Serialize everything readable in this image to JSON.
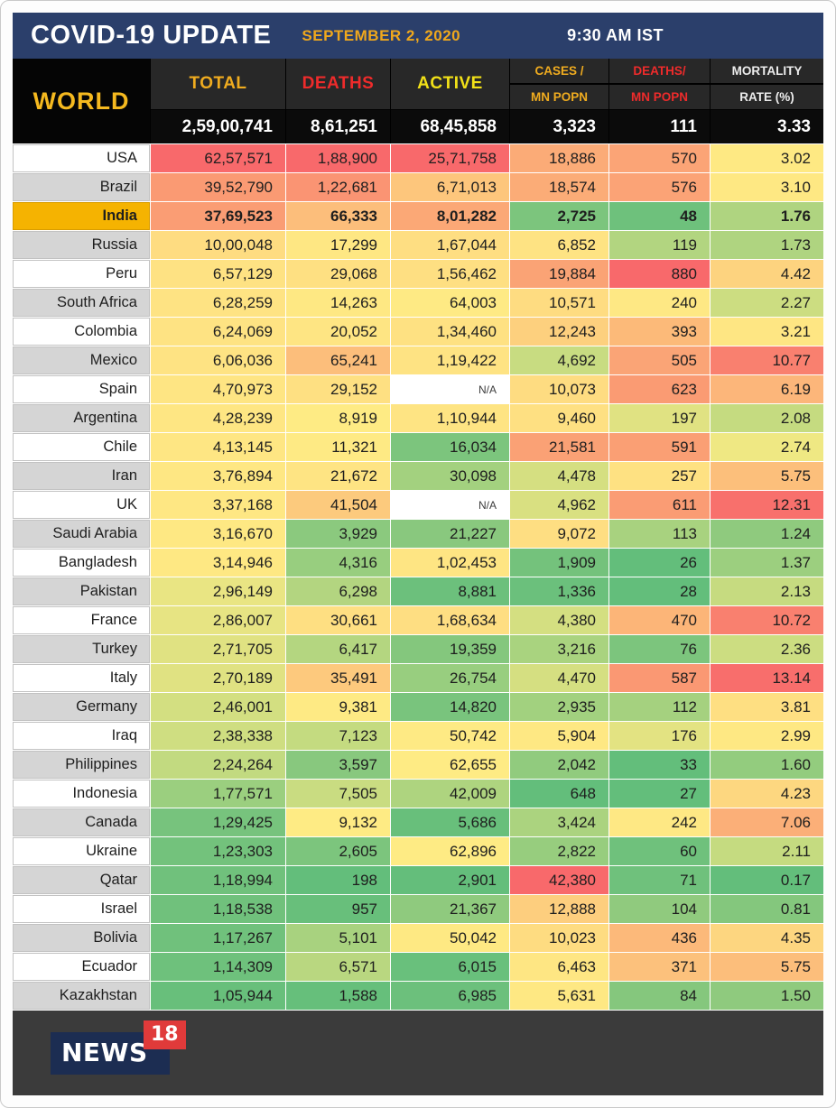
{
  "header": {
    "title": "COVID-19 UPDATE",
    "date": "SEPTEMBER 2, 2020",
    "time": "9:30 AM IST"
  },
  "footer": {
    "logo_text": "NEWS",
    "logo_badge": "18"
  },
  "colors": {
    "topbar_bg": "#2b3f6b",
    "gold_accent": "#f0a81c",
    "india_highlight": "#f5b301",
    "header_cell_bg": "#282828",
    "world_row_bg": "#0b0b0b",
    "footer_bg": "#3b3b3b",
    "logo_navy": "#1c2d52",
    "logo_red": "#e03a3a",
    "label_gray": "#d5d5d5",
    "label_white": "#ffffff"
  },
  "chart_data": {
    "type": "table",
    "title": "COVID-19 UPDATE",
    "date": "SEPTEMBER 2, 2020",
    "time": "9:30 AM IST",
    "region_label": "WORLD",
    "heat_scale": {
      "low": "#63BE7B",
      "mid": "#FFEB84",
      "high": "#F8696B"
    },
    "columns": [
      {
        "id": "total",
        "label": "TOTAL",
        "label2": "",
        "color": "#f0ac1f"
      },
      {
        "id": "deaths",
        "label": "DEATHS",
        "label2": "",
        "color": "#ee2b2b"
      },
      {
        "id": "active",
        "label": "ACTIVE",
        "label2": "",
        "color": "#f2e118"
      },
      {
        "id": "cases-per-mn",
        "label": "CASES /",
        "label2": "MN POPN",
        "color": "#f0ac1f"
      },
      {
        "id": "deaths-per-mn",
        "label": "DEATHS/",
        "label2": "MN POPN",
        "color": "#ee2b2b"
      },
      {
        "id": "mortality",
        "label": "MORTALITY",
        "label2": "RATE (%)",
        "color": "#ededed"
      }
    ],
    "world_values": [
      "2,59,00,741",
      "8,61,251",
      "68,45,858",
      "3,323",
      "111",
      "3.33"
    ],
    "rows": [
      {
        "country": "USA",
        "highlight": false,
        "values": [
          "62,57,571",
          "1,88,900",
          "25,71,758",
          "18,886",
          "570",
          "3.02"
        ],
        "colors": [
          "#F8696B",
          "#F8696B",
          "#F8696B",
          "#FBAB77",
          "#FBA476",
          "#FEE983"
        ]
      },
      {
        "country": "Brazil",
        "highlight": false,
        "values": [
          "39,52,790",
          "1,22,681",
          "6,71,013",
          "18,574",
          "576",
          "3.10"
        ],
        "colors": [
          "#FA9A73",
          "#FA9473",
          "#FDC67C",
          "#FBAC77",
          "#FBA376",
          "#FEE883"
        ]
      },
      {
        "country": "India",
        "highlight": true,
        "values": [
          "37,69,523",
          "66,333",
          "8,01,282",
          "2,725",
          "48",
          "1.76"
        ],
        "colors": [
          "#FA9D74",
          "#FCBE7B",
          "#FBA876",
          "#7CC57D",
          "#6EC17C",
          "#AFD480"
        ]
      },
      {
        "country": "Russia",
        "highlight": false,
        "values": [
          "10,00,048",
          "17,299",
          "1,67,044",
          "6,852",
          "119",
          "1.73"
        ],
        "colors": [
          "#FEDC81",
          "#FEE783",
          "#FEDE82",
          "#FEE383",
          "#B2D580",
          "#AFD480"
        ]
      },
      {
        "country": "Peru",
        "highlight": false,
        "values": [
          "6,57,129",
          "29,068",
          "1,56,462",
          "19,884",
          "880",
          "4.42"
        ],
        "colors": [
          "#FEE283",
          "#FEE082",
          "#FEDF82",
          "#FAA375",
          "#F8696B",
          "#FDD37F"
        ]
      },
      {
        "country": "South Africa",
        "highlight": false,
        "values": [
          "6,28,259",
          "14,263",
          "64,003",
          "10,571",
          "240",
          "2.27"
        ],
        "colors": [
          "#FEE383",
          "#FEE883",
          "#FEEA84",
          "#FEDC81",
          "#FEE884",
          "#CCDD81"
        ]
      },
      {
        "country": "Colombia",
        "highlight": false,
        "values": [
          "6,24,069",
          "20,052",
          "1,34,460",
          "12,243",
          "393",
          "3.21"
        ],
        "colors": [
          "#FEE383",
          "#FEE583",
          "#FEE182",
          "#FDD07E",
          "#FCBA79",
          "#FEE683"
        ]
      },
      {
        "country": "Mexico",
        "highlight": false,
        "values": [
          "6,06,036",
          "65,241",
          "1,19,422",
          "4,692",
          "505",
          "10.77"
        ],
        "colors": [
          "#FEE383",
          "#FCBE7B",
          "#FEE383",
          "#C8DC81",
          "#FAA476",
          "#F9806F"
        ]
      },
      {
        "country": "Spain",
        "highlight": false,
        "values": [
          "4,70,973",
          "29,152",
          "N/A",
          "10,073",
          "623",
          "6.19"
        ],
        "colors": [
          "#FEE583",
          "#FEE082",
          "#FFFFFF",
          "#FEDC81",
          "#FA9B73",
          "#FCB67A"
        ]
      },
      {
        "country": "Argentina",
        "highlight": false,
        "values": [
          "4,28,239",
          "8,919",
          "1,10,944",
          "9,460",
          "197",
          "2.08"
        ],
        "colors": [
          "#FEE683",
          "#FEEB84",
          "#FEE483",
          "#FEE082",
          "#E0E282",
          "#C5DB80"
        ]
      },
      {
        "country": "Chile",
        "highlight": false,
        "values": [
          "4,13,145",
          "11,321",
          "16,034",
          "21,581",
          "591",
          "2.74"
        ],
        "colors": [
          "#FEE683",
          "#FEEA84",
          "#7CC57D",
          "#FAA175",
          "#FA9F74",
          "#EFE883"
        ]
      },
      {
        "country": "Iran",
        "highlight": false,
        "values": [
          "3,76,894",
          "21,672",
          "30,098",
          "4,478",
          "257",
          "5.75"
        ],
        "colors": [
          "#FEE783",
          "#FEE483",
          "#A3D17F",
          "#D5DF81",
          "#FEE182",
          "#FCBF7B"
        ]
      },
      {
        "country": "UK",
        "highlight": false,
        "values": [
          "3,37,168",
          "41,504",
          "N/A",
          "4,962",
          "611",
          "12.31"
        ],
        "colors": [
          "#FEE783",
          "#FCCA7D",
          "#FFFFFF",
          "#D9E081",
          "#FA9C74",
          "#F8706C"
        ]
      },
      {
        "country": "Saudi Arabia",
        "highlight": false,
        "values": [
          "3,16,670",
          "3,929",
          "21,227",
          "9,072",
          "113",
          "1.24"
        ],
        "colors": [
          "#FEE883",
          "#8BC97E",
          "#89C87E",
          "#FEDE82",
          "#A8D27F",
          "#8FCA7E"
        ]
      },
      {
        "country": "Bangladesh",
        "highlight": false,
        "values": [
          "3,14,946",
          "4,316",
          "1,02,453",
          "1,909",
          "26",
          "1.37"
        ],
        "colors": [
          "#FEE883",
          "#98CE7F",
          "#FEE583",
          "#74C27C",
          "#63BE7B",
          "#9CCF7F"
        ]
      },
      {
        "country": "Pakistan",
        "highlight": false,
        "values": [
          "2,96,149",
          "6,298",
          "8,881",
          "1,336",
          "28",
          "2.13"
        ],
        "colors": [
          "#E9E583",
          "#B3D580",
          "#6CC07C",
          "#6BC07C",
          "#63BE7B",
          "#C6DB80"
        ]
      },
      {
        "country": "France",
        "highlight": false,
        "values": [
          "2,86,007",
          "30,661",
          "1,68,634",
          "4,380",
          "470",
          "10.72"
        ],
        "colors": [
          "#E7E483",
          "#FEDF82",
          "#FEDE82",
          "#D4DF81",
          "#FCB578",
          "#F9806F"
        ]
      },
      {
        "country": "Turkey",
        "highlight": false,
        "values": [
          "2,71,705",
          "6,417",
          "19,359",
          "3,216",
          "76",
          "2.36"
        ],
        "colors": [
          "#E0E282",
          "#B4D680",
          "#84C77D",
          "#A9D37F",
          "#7CC57D",
          "#CCDD81"
        ]
      },
      {
        "country": "Italy",
        "highlight": false,
        "values": [
          "2,70,189",
          "35,491",
          "26,754",
          "4,470",
          "587",
          "13.14"
        ],
        "colors": [
          "#E0E282",
          "#FDC97D",
          "#98CE7F",
          "#D5DF81",
          "#FA9873",
          "#F86E6C"
        ]
      },
      {
        "country": "Germany",
        "highlight": false,
        "values": [
          "2,46,001",
          "9,381",
          "14,820",
          "2,935",
          "112",
          "3.81"
        ],
        "colors": [
          "#D3DF81",
          "#FEEA84",
          "#79C47D",
          "#A2D17F",
          "#A5D17F",
          "#FEDF82"
        ]
      },
      {
        "country": "Iraq",
        "highlight": false,
        "values": [
          "2,38,338",
          "7,123",
          "50,742",
          "5,904",
          "176",
          "2.99"
        ],
        "colors": [
          "#CFDE81",
          "#C4DB80",
          "#FEEA84",
          "#FEE883",
          "#E3E382",
          "#FEE883"
        ]
      },
      {
        "country": "Philippines",
        "highlight": false,
        "values": [
          "2,24,264",
          "3,597",
          "62,655",
          "2,042",
          "33",
          "1.60"
        ],
        "colors": [
          "#C2DA80",
          "#88C87E",
          "#FEEB84",
          "#91CB7E",
          "#63BE7B",
          "#93CC7E"
        ]
      },
      {
        "country": "Indonesia",
        "highlight": false,
        "values": [
          "1,77,571",
          "7,505",
          "42,009",
          "648",
          "27",
          "4.23"
        ],
        "colors": [
          "#9BCF7F",
          "#C9DC81",
          "#AED47F",
          "#63BE7B",
          "#63BE7B",
          "#FDD780"
        ]
      },
      {
        "country": "Canada",
        "highlight": false,
        "values": [
          "1,29,425",
          "9,132",
          "5,686",
          "3,424",
          "242",
          "7.06"
        ],
        "colors": [
          "#77C37D",
          "#FEEB84",
          "#68BF7B",
          "#ABD37F",
          "#FEE884",
          "#FBAF78"
        ]
      },
      {
        "country": "Ukraine",
        "highlight": false,
        "values": [
          "1,23,303",
          "2,605",
          "62,896",
          "2,822",
          "60",
          "2.11"
        ],
        "colors": [
          "#73C27C",
          "#7CC57D",
          "#FEEB84",
          "#97CD7E",
          "#6FC17C",
          "#C5DB80"
        ]
      },
      {
        "country": "Qatar",
        "highlight": false,
        "values": [
          "1,18,994",
          "198",
          "2,901",
          "42,380",
          "71",
          "0.17"
        ],
        "colors": [
          "#70C17C",
          "#63BE7B",
          "#64BE7B",
          "#F8696B",
          "#6FC17C",
          "#63BE7B"
        ]
      },
      {
        "country": "Israel",
        "highlight": false,
        "values": [
          "1,18,538",
          "957",
          "21,367",
          "12,888",
          "104",
          "0.81"
        ],
        "colors": [
          "#70C17C",
          "#68BF7B",
          "#8FCA7E",
          "#FDCE7E",
          "#90CA7E",
          "#84C77D"
        ]
      },
      {
        "country": "Bolivia",
        "highlight": false,
        "values": [
          "1,17,267",
          "5,101",
          "50,042",
          "10,023",
          "436",
          "4.35"
        ],
        "colors": [
          "#70C17C",
          "#A8D27F",
          "#FEE983",
          "#FEDC81",
          "#FCB97A",
          "#FDD680"
        ]
      },
      {
        "country": "Ecuador",
        "highlight": false,
        "values": [
          "1,14,309",
          "6,571",
          "6,015",
          "6,463",
          "371",
          "5.75"
        ],
        "colors": [
          "#6EC17C",
          "#B9D780",
          "#69C07C",
          "#FEE683",
          "#FCC17C",
          "#FCBE7B"
        ]
      },
      {
        "country": "Kazakhstan",
        "highlight": false,
        "values": [
          "1,05,944",
          "1,588",
          "6,985",
          "5,631",
          "84",
          "1.50"
        ],
        "colors": [
          "#68BF7B",
          "#66BF7B",
          "#6CC07C",
          "#FEE883",
          "#85C77D",
          "#8FCA7E"
        ]
      }
    ]
  }
}
